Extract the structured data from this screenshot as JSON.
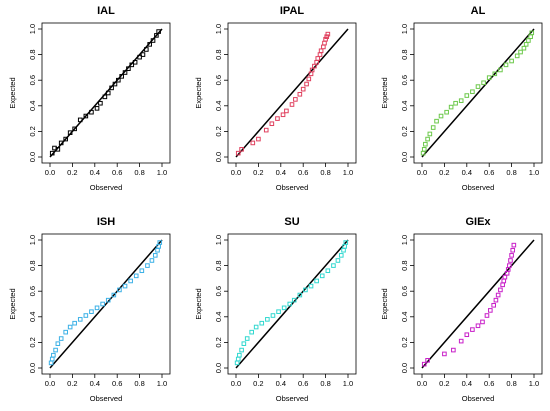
{
  "chart_data": [
    {
      "type": "scatter",
      "title": "IAL",
      "xlabel": "Observed",
      "ylabel": "Expected",
      "xlim": [
        0,
        1
      ],
      "ylim": [
        0,
        1
      ],
      "xticks": [
        "0.0",
        "0.2",
        "0.4",
        "0.6",
        "0.8",
        "1.0"
      ],
      "yticks": [
        "0.0",
        "0.2",
        "0.4",
        "0.6",
        "0.8",
        "1.0"
      ],
      "reference_line": "y = x",
      "color": "#000000",
      "series": [
        {
          "x": [
            0.02,
            0.04,
            0.07,
            0.1,
            0.14,
            0.18,
            0.22,
            0.27,
            0.32,
            0.37,
            0.42,
            0.45,
            0.49,
            0.52,
            0.55,
            0.58,
            0.61,
            0.64,
            0.67,
            0.7,
            0.73,
            0.76,
            0.8,
            0.83,
            0.86,
            0.89,
            0.92,
            0.95,
            0.97
          ],
          "y": [
            0.03,
            0.07,
            0.06,
            0.11,
            0.14,
            0.19,
            0.22,
            0.29,
            0.32,
            0.35,
            0.38,
            0.42,
            0.47,
            0.5,
            0.54,
            0.57,
            0.6,
            0.63,
            0.66,
            0.69,
            0.72,
            0.74,
            0.78,
            0.8,
            0.84,
            0.88,
            0.91,
            0.95,
            0.98
          ]
        }
      ]
    },
    {
      "type": "scatter",
      "title": "IPAL",
      "xlabel": "Observed",
      "ylabel": "Expected",
      "xlim": [
        0,
        1
      ],
      "ylim": [
        0,
        1
      ],
      "xticks": [
        "0.0",
        "0.2",
        "0.4",
        "0.6",
        "0.8",
        "1.0"
      ],
      "yticks": [
        "0.0",
        "0.2",
        "0.4",
        "0.6",
        "0.8",
        "1.0"
      ],
      "reference_line": "y = x",
      "color": "#e0405e",
      "series": [
        {
          "x": [
            0.02,
            0.05,
            0.15,
            0.2,
            0.27,
            0.32,
            0.37,
            0.42,
            0.45,
            0.5,
            0.53,
            0.57,
            0.6,
            0.63,
            0.65,
            0.67,
            0.68,
            0.7,
            0.72,
            0.73,
            0.75,
            0.76,
            0.78,
            0.79,
            0.8,
            0.81,
            0.82
          ],
          "y": [
            0.03,
            0.06,
            0.11,
            0.14,
            0.21,
            0.26,
            0.3,
            0.33,
            0.36,
            0.41,
            0.45,
            0.49,
            0.53,
            0.57,
            0.61,
            0.65,
            0.68,
            0.71,
            0.74,
            0.77,
            0.8,
            0.83,
            0.86,
            0.89,
            0.92,
            0.94,
            0.96
          ]
        }
      ]
    },
    {
      "type": "scatter",
      "title": "AL",
      "xlabel": "Observed",
      "ylabel": "Expected",
      "xlim": [
        0,
        1
      ],
      "ylim": [
        0,
        1
      ],
      "xticks": [
        "0.0",
        "0.2",
        "0.4",
        "0.6",
        "0.8",
        "1.0"
      ],
      "yticks": [
        "0.0",
        "0.2",
        "0.4",
        "0.6",
        "0.8",
        "1.0"
      ],
      "reference_line": "y = x",
      "color": "#6cc84a",
      "series": [
        {
          "x": [
            0.01,
            0.02,
            0.03,
            0.05,
            0.07,
            0.1,
            0.13,
            0.17,
            0.22,
            0.26,
            0.3,
            0.35,
            0.4,
            0.45,
            0.5,
            0.55,
            0.6,
            0.65,
            0.7,
            0.75,
            0.8,
            0.85,
            0.88,
            0.91,
            0.93,
            0.95,
            0.97,
            0.98
          ],
          "y": [
            0.03,
            0.06,
            0.1,
            0.14,
            0.18,
            0.23,
            0.28,
            0.32,
            0.35,
            0.39,
            0.42,
            0.44,
            0.48,
            0.51,
            0.55,
            0.58,
            0.62,
            0.65,
            0.68,
            0.72,
            0.75,
            0.79,
            0.82,
            0.85,
            0.88,
            0.91,
            0.94,
            0.97
          ]
        }
      ]
    },
    {
      "type": "scatter",
      "title": "ISH",
      "xlabel": "Observed",
      "ylabel": "Expected",
      "xlim": [
        0,
        1
      ],
      "ylim": [
        0,
        1
      ],
      "xticks": [
        "0.0",
        "0.2",
        "0.4",
        "0.6",
        "0.8",
        "1.0"
      ],
      "yticks": [
        "0.0",
        "0.2",
        "0.4",
        "0.6",
        "0.8",
        "1.0"
      ],
      "reference_line": "y = x",
      "color": "#3ab0e6",
      "series": [
        {
          "x": [
            0.01,
            0.02,
            0.03,
            0.05,
            0.07,
            0.1,
            0.14,
            0.18,
            0.22,
            0.27,
            0.32,
            0.37,
            0.42,
            0.47,
            0.52,
            0.57,
            0.62,
            0.67,
            0.72,
            0.77,
            0.82,
            0.87,
            0.91,
            0.94,
            0.96,
            0.97,
            0.98
          ],
          "y": [
            0.04,
            0.07,
            0.1,
            0.14,
            0.19,
            0.23,
            0.28,
            0.32,
            0.35,
            0.38,
            0.41,
            0.44,
            0.47,
            0.5,
            0.53,
            0.57,
            0.61,
            0.64,
            0.68,
            0.72,
            0.76,
            0.8,
            0.84,
            0.88,
            0.92,
            0.95,
            0.98
          ]
        }
      ]
    },
    {
      "type": "scatter",
      "title": "SU",
      "xlabel": "Observed",
      "ylabel": "Expected",
      "xlim": [
        0,
        1
      ],
      "ylim": [
        0,
        1
      ],
      "xticks": [
        "0.0",
        "0.2",
        "0.4",
        "0.6",
        "0.8",
        "1.0"
      ],
      "yticks": [
        "0.0",
        "0.2",
        "0.4",
        "0.6",
        "0.8",
        "1.0"
      ],
      "reference_line": "y = x",
      "color": "#30d8d0",
      "series": [
        {
          "x": [
            0.01,
            0.02,
            0.03,
            0.05,
            0.07,
            0.1,
            0.14,
            0.18,
            0.23,
            0.28,
            0.33,
            0.38,
            0.43,
            0.48,
            0.52,
            0.57,
            0.62,
            0.67,
            0.72,
            0.77,
            0.82,
            0.87,
            0.91,
            0.94,
            0.96,
            0.97,
            0.98
          ],
          "y": [
            0.04,
            0.07,
            0.1,
            0.14,
            0.19,
            0.23,
            0.28,
            0.32,
            0.35,
            0.38,
            0.41,
            0.44,
            0.47,
            0.5,
            0.53,
            0.57,
            0.61,
            0.64,
            0.68,
            0.72,
            0.76,
            0.8,
            0.84,
            0.88,
            0.92,
            0.95,
            0.98
          ]
        }
      ]
    },
    {
      "type": "scatter",
      "title": "GIEx",
      "xlabel": "Observed",
      "ylabel": "Expected",
      "xlim": [
        0,
        1
      ],
      "ylim": [
        0,
        1
      ],
      "xticks": [
        "0.0",
        "0.2",
        "0.4",
        "0.6",
        "0.8",
        "1.0"
      ],
      "yticks": [
        "0.0",
        "0.2",
        "0.4",
        "0.6",
        "0.8",
        "1.0"
      ],
      "reference_line": "y = x",
      "color": "#c81ec8",
      "series": [
        {
          "x": [
            0.02,
            0.05,
            0.2,
            0.28,
            0.35,
            0.4,
            0.45,
            0.5,
            0.54,
            0.58,
            0.61,
            0.64,
            0.66,
            0.68,
            0.7,
            0.72,
            0.73,
            0.74,
            0.76,
            0.77,
            0.78,
            0.79,
            0.8,
            0.81,
            0.82
          ],
          "y": [
            0.03,
            0.06,
            0.11,
            0.14,
            0.21,
            0.26,
            0.3,
            0.33,
            0.36,
            0.41,
            0.45,
            0.49,
            0.53,
            0.57,
            0.61,
            0.65,
            0.68,
            0.71,
            0.74,
            0.77,
            0.8,
            0.84,
            0.88,
            0.92,
            0.96
          ]
        }
      ]
    }
  ]
}
